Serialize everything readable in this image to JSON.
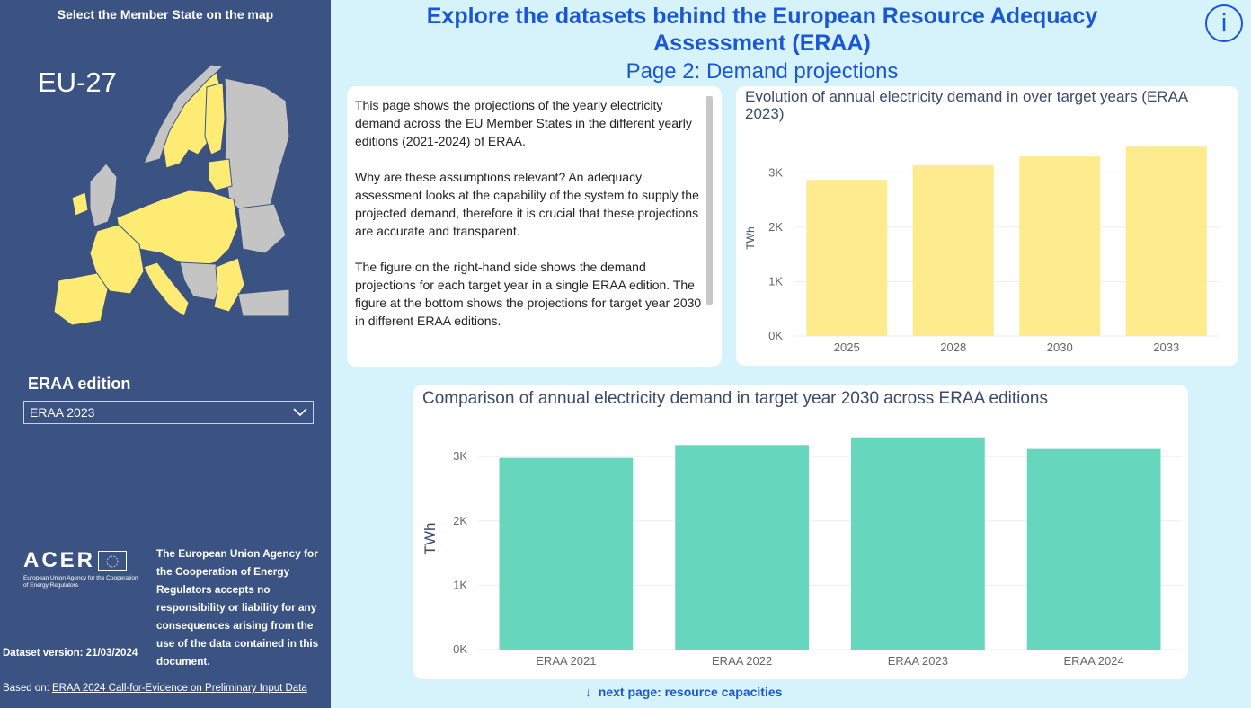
{
  "sidebar": {
    "title": "Select the Member State on the map",
    "region": "EU-27",
    "edition_label": "ERAA edition",
    "edition_selected": "ERAA 2023",
    "acer_name": "ACER",
    "acer_subtitle": "European Union Agency for the Cooperation of Energy Regulators",
    "disclaimer": "The European Union Agency for the Cooperation of Energy Regulators accepts no responsibility or liability for any consequences arising from the use of the data contained in this document.",
    "dataset_version": "Dataset version: 21/03/2024",
    "based_on_prefix": "Based on: ",
    "based_on_link": "ERAA 2024 Call-for-Evidence on Preliminary Input Data"
  },
  "header": {
    "title_line1": "Explore the datasets behind the European Resource Adequacy",
    "title_line2": "Assessment (ERAA)",
    "subtitle": "Page 2: Demand projections",
    "info_icon": "i"
  },
  "text_panel": {
    "p1": "This page shows the projections of the yearly electricity demand across the EU Member States in the different yearly editions (2021-2024) of ERAA.",
    "p2": "Why are these assumptions relevant? An adequacy assessment looks at the capability of the system to supply the projected demand, therefore it is crucial that these projections are accurate and transparent.",
    "p3": "The figure on the right-hand side shows the demand projections for each target year in a single ERAA edition. The figure at the bottom shows the projections for target year 2030 in different ERAA editions."
  },
  "navigation": {
    "arrow": "↓",
    "next_page": "next page: resource capacities"
  },
  "colors": {
    "sidebar": "#3b5382",
    "accent": "#1a56d6",
    "bar_yellow": "#fdeb8e",
    "bar_teal": "#66d6bd",
    "map_selected": "#fdeb74",
    "map_other": "#c4c4c4"
  },
  "chart_data": [
    {
      "type": "bar",
      "title": "Evolution of annual electricity demand in over target years (ERAA 2023)",
      "categories": [
        "2025",
        "2028",
        "2030",
        "2033"
      ],
      "values": [
        2870,
        3140,
        3300,
        3480
      ],
      "ylabel": "TWh",
      "xlabel": "",
      "ylim": [
        0,
        3600
      ],
      "yticks": [
        "0K",
        "1K",
        "2K",
        "3K"
      ],
      "grid": true,
      "color": "#fdeb8e"
    },
    {
      "type": "bar",
      "title": "Comparison of annual electricity demand in target year 2030 across ERAA editions",
      "categories": [
        "ERAA 2021",
        "ERAA 2022",
        "ERAA 2023",
        "ERAA 2024"
      ],
      "values": [
        2980,
        3180,
        3300,
        3120
      ],
      "ylabel": "TWh",
      "xlabel": "",
      "ylim": [
        0,
        3450
      ],
      "yticks": [
        "0K",
        "1K",
        "2K",
        "3K"
      ],
      "grid": true,
      "color": "#66d6bd"
    }
  ]
}
